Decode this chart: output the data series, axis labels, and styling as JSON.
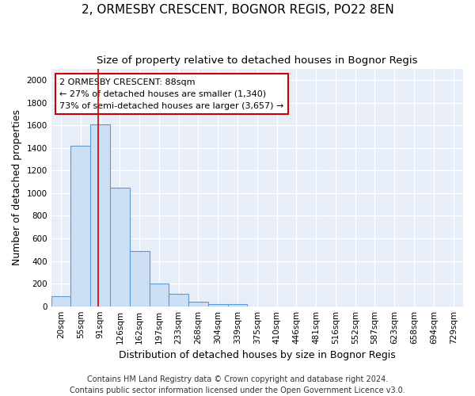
{
  "title": "2, ORMESBY CRESCENT, BOGNOR REGIS, PO22 8EN",
  "subtitle": "Size of property relative to detached houses in Bognor Regis",
  "xlabel": "Distribution of detached houses by size in Bognor Regis",
  "ylabel": "Number of detached properties",
  "footer_line1": "Contains HM Land Registry data © Crown copyright and database right 2024.",
  "footer_line2": "Contains public sector information licensed under the Open Government Licence v3.0.",
  "bin_labels": [
    "20sqm",
    "55sqm",
    "91sqm",
    "126sqm",
    "162sqm",
    "197sqm",
    "233sqm",
    "268sqm",
    "304sqm",
    "339sqm",
    "375sqm",
    "410sqm",
    "446sqm",
    "481sqm",
    "516sqm",
    "552sqm",
    "587sqm",
    "623sqm",
    "658sqm",
    "694sqm",
    "729sqm"
  ],
  "bar_values": [
    90,
    1420,
    1610,
    1050,
    490,
    200,
    110,
    40,
    20,
    20,
    0,
    0,
    0,
    0,
    0,
    0,
    0,
    0,
    0,
    0,
    0
  ],
  "bar_color": "#ccdff5",
  "bar_edge_color": "#5b9bd5",
  "red_line_x": 1.88,
  "ylim": [
    0,
    2100
  ],
  "yticks": [
    0,
    200,
    400,
    600,
    800,
    1000,
    1200,
    1400,
    1600,
    1800,
    2000
  ],
  "annotation_text": "2 ORMESBY CRESCENT: 88sqm\n← 27% of detached houses are smaller (1,340)\n73% of semi-detached houses are larger (3,657) →",
  "annotation_box_facecolor": "#ffffff",
  "annotation_box_edgecolor": "#cc0000",
  "fig_background": "#ffffff",
  "plot_background": "#e8eef8",
  "grid_color": "#ffffff",
  "title_fontsize": 11,
  "subtitle_fontsize": 9.5,
  "axis_label_fontsize": 9,
  "tick_fontsize": 7.5,
  "annotation_fontsize": 8,
  "footer_fontsize": 7
}
